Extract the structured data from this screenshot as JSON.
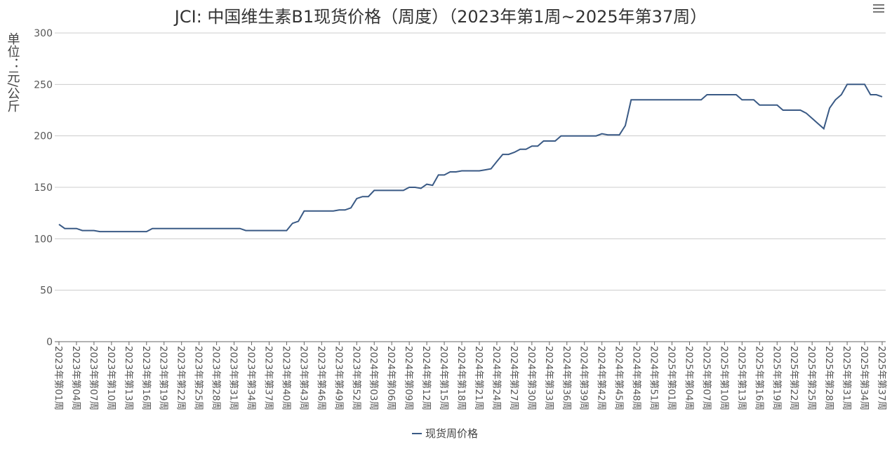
{
  "chart_data": {
    "type": "line",
    "title": "JCI: 中国维生素B1现货价格（周度）（2023年第1周~2025年第37周）",
    "y_label": "单位：元/公斤",
    "categories": [
      "2023年第01周",
      null,
      null,
      "2023年第04周",
      null,
      null,
      "2023年第07周",
      null,
      null,
      "2023年第10周",
      null,
      null,
      "2023年第13周",
      null,
      null,
      "2023年第16周",
      null,
      null,
      "2023年第19周",
      null,
      null,
      "2023年第22周",
      null,
      null,
      "2023年第25周",
      null,
      null,
      "2023年第28周",
      null,
      null,
      "2023年第31周",
      null,
      null,
      "2023年第34周",
      null,
      null,
      "2023年第37周",
      null,
      null,
      "2023年第40周",
      null,
      null,
      "2023年第43周",
      null,
      null,
      "2023年第46周",
      null,
      null,
      "2023年第49周",
      null,
      null,
      "2023年第52周",
      null,
      null,
      "2024年第03周",
      null,
      null,
      "2024年第06周",
      null,
      null,
      "2024年第09周",
      null,
      null,
      "2024年第12周",
      null,
      null,
      "2024年第15周",
      null,
      null,
      "2024年第18周",
      null,
      null,
      "2024年第21周",
      null,
      null,
      "2024年第24周",
      null,
      null,
      "2024年第27周",
      null,
      null,
      "2024年第30周",
      null,
      null,
      "2024年第33周",
      null,
      null,
      "2024年第36周",
      null,
      null,
      "2024年第39周",
      null,
      null,
      "2024年第42周",
      null,
      null,
      "2024年第45周",
      null,
      null,
      "2024年第48周",
      null,
      null,
      "2024年第51周",
      null,
      null,
      "2025年第01周",
      null,
      null,
      "2025年第04周",
      null,
      null,
      "2025年第07周",
      null,
      null,
      "2025年第10周",
      null,
      null,
      "2025年第13周",
      null,
      null,
      "2025年第16周",
      null,
      null,
      "2025年第19周",
      null,
      null,
      "2025年第22周",
      null,
      null,
      "2025年第25周",
      null,
      null,
      "2025年第28周",
      null,
      null,
      "2025年第31周",
      null,
      null,
      "2025年第34周",
      null,
      null,
      "2025年第37周"
    ],
    "series": [
      {
        "name": "现货周价格",
        "color": "#3a5a85",
        "values": [
          114,
          110,
          110,
          110,
          108,
          108,
          108,
          107,
          107,
          107,
          107,
          107,
          107,
          107,
          107,
          107,
          110,
          110,
          110,
          110,
          110,
          110,
          110,
          110,
          110,
          110,
          110,
          110,
          110,
          110,
          110,
          110,
          108,
          108,
          108,
          108,
          108,
          108,
          108,
          108,
          115,
          117,
          127,
          127,
          127,
          127,
          127,
          127,
          128,
          128,
          130,
          139,
          141,
          141,
          147,
          147,
          147,
          147,
          147,
          147,
          150,
          150,
          149,
          153,
          152,
          162,
          162,
          165,
          165,
          166,
          166,
          166,
          166,
          167,
          168,
          175,
          182,
          182,
          184,
          187,
          187,
          190,
          190,
          195,
          195,
          195,
          200,
          200,
          200,
          200,
          200,
          200,
          200,
          202,
          201,
          201,
          201,
          210,
          235,
          235,
          235,
          235,
          235,
          235,
          235,
          235,
          235,
          235,
          235,
          235,
          235,
          240,
          240,
          240,
          240,
          240,
          240,
          235,
          235,
          235,
          230,
          230,
          230,
          230,
          225,
          225,
          225,
          225,
          222,
          217,
          212,
          207,
          227,
          235,
          240,
          250,
          250,
          250,
          250,
          240,
          240,
          238
        ]
      }
    ],
    "ylim": [
      0,
      300
    ],
    "yticks": [
      0,
      50,
      100,
      150,
      200,
      250,
      300
    ],
    "grid": true,
    "legend": "bottom"
  }
}
